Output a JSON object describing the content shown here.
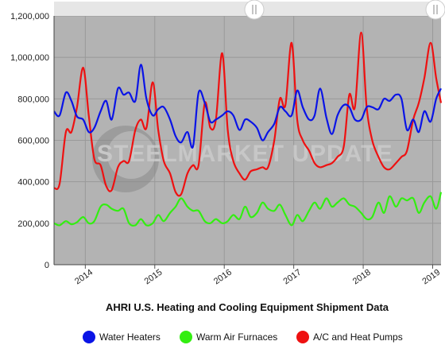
{
  "chart_data": {
    "type": "line",
    "title": "AHRI U.S. Heating and Cooling Equipment Shipment Data",
    "xlabel": "",
    "ylabel": "",
    "ylim": [
      0,
      1200000
    ],
    "yticks": [
      "0",
      "200,000",
      "400,000",
      "600,000",
      "800,000",
      "1,000,000",
      "1,200,000"
    ],
    "yticks_values": [
      0,
      200000,
      400000,
      600000,
      800000,
      1000000,
      1200000
    ],
    "x_range": [
      2013.55,
      2019.12
    ],
    "xticks": [
      {
        "label": "2014",
        "pos": 2014.0
      },
      {
        "label": "2015",
        "pos": 2015.0
      },
      {
        "label": "2016",
        "pos": 2016.0
      },
      {
        "label": "2017",
        "pos": 2017.0
      },
      {
        "label": "2018",
        "pos": 2018.0
      },
      {
        "label": "2019",
        "pos": 2019.0
      }
    ],
    "grid": true,
    "legend_position": "bottom",
    "watermark": "STEELMARKET UPDATE",
    "series": [
      {
        "name": "Water Heaters",
        "color": "#0a14e6",
        "x": [
          2013.55,
          2013.63,
          2013.72,
          2013.8,
          2013.88,
          2013.97,
          2014.05,
          2014.13,
          2014.22,
          2014.3,
          2014.38,
          2014.47,
          2014.55,
          2014.63,
          2014.72,
          2014.8,
          2014.88,
          2014.97,
          2015.05,
          2015.13,
          2015.22,
          2015.3,
          2015.38,
          2015.47,
          2015.55,
          2015.63,
          2015.72,
          2015.8,
          2015.88,
          2015.97,
          2016.05,
          2016.13,
          2016.22,
          2016.3,
          2016.38,
          2016.47,
          2016.55,
          2016.63,
          2016.72,
          2016.8,
          2016.88,
          2016.97,
          2017.05,
          2017.13,
          2017.22,
          2017.3,
          2017.38,
          2017.47,
          2017.55,
          2017.63,
          2017.72,
          2017.8,
          2017.88,
          2017.97,
          2018.05,
          2018.13,
          2018.22,
          2018.3,
          2018.38,
          2018.47,
          2018.55,
          2018.63,
          2018.72,
          2018.8,
          2018.88,
          2018.97,
          2019.05,
          2019.12
        ],
        "values": [
          740000,
          720000,
          830000,
          790000,
          715000,
          700000,
          640000,
          660000,
          740000,
          790000,
          700000,
          850000,
          820000,
          830000,
          790000,
          965000,
          800000,
          720000,
          750000,
          760000,
          700000,
          620000,
          590000,
          640000,
          570000,
          830000,
          780000,
          690000,
          700000,
          720000,
          740000,
          720000,
          650000,
          700000,
          690000,
          660000,
          600000,
          640000,
          680000,
          760000,
          740000,
          720000,
          840000,
          760000,
          700000,
          720000,
          850000,
          710000,
          630000,
          720000,
          770000,
          760000,
          700000,
          700000,
          760000,
          760000,
          750000,
          800000,
          790000,
          820000,
          800000,
          650000,
          700000,
          640000,
          740000,
          690000,
          800000,
          850000
        ]
      },
      {
        "name": "Warm Air Furnaces",
        "color": "#33ee11",
        "x": [
          2013.55,
          2013.63,
          2013.72,
          2013.8,
          2013.88,
          2013.97,
          2014.05,
          2014.13,
          2014.22,
          2014.3,
          2014.38,
          2014.47,
          2014.55,
          2014.63,
          2014.72,
          2014.8,
          2014.88,
          2014.97,
          2015.05,
          2015.13,
          2015.22,
          2015.3,
          2015.38,
          2015.47,
          2015.55,
          2015.63,
          2015.72,
          2015.8,
          2015.88,
          2015.97,
          2016.05,
          2016.13,
          2016.22,
          2016.3,
          2016.38,
          2016.47,
          2016.55,
          2016.63,
          2016.72,
          2016.8,
          2016.88,
          2016.97,
          2017.05,
          2017.13,
          2017.22,
          2017.3,
          2017.38,
          2017.47,
          2017.55,
          2017.63,
          2017.72,
          2017.8,
          2017.88,
          2017.97,
          2018.05,
          2018.13,
          2018.22,
          2018.3,
          2018.38,
          2018.47,
          2018.55,
          2018.63,
          2018.72,
          2018.8,
          2018.88,
          2018.97,
          2019.05,
          2019.12
        ],
        "values": [
          200000,
          190000,
          210000,
          195000,
          205000,
          230000,
          200000,
          210000,
          280000,
          290000,
          270000,
          260000,
          270000,
          200000,
          190000,
          220000,
          190000,
          200000,
          240000,
          210000,
          250000,
          280000,
          320000,
          280000,
          260000,
          260000,
          210000,
          200000,
          220000,
          200000,
          210000,
          240000,
          220000,
          280000,
          230000,
          250000,
          300000,
          270000,
          260000,
          290000,
          240000,
          190000,
          240000,
          210000,
          260000,
          300000,
          270000,
          320000,
          280000,
          300000,
          320000,
          290000,
          280000,
          250000,
          220000,
          230000,
          300000,
          250000,
          330000,
          280000,
          320000,
          310000,
          320000,
          250000,
          300000,
          330000,
          270000,
          350000
        ]
      },
      {
        "name": "A/C and Heat Pumps",
        "color": "#ee1111",
        "x": [
          2013.55,
          2013.63,
          2013.72,
          2013.8,
          2013.88,
          2013.97,
          2014.05,
          2014.13,
          2014.22,
          2014.3,
          2014.38,
          2014.47,
          2014.55,
          2014.63,
          2014.72,
          2014.8,
          2014.88,
          2014.97,
          2015.05,
          2015.13,
          2015.22,
          2015.3,
          2015.38,
          2015.47,
          2015.55,
          2015.63,
          2015.72,
          2015.8,
          2015.88,
          2015.97,
          2016.05,
          2016.13,
          2016.22,
          2016.3,
          2016.38,
          2016.47,
          2016.55,
          2016.63,
          2016.72,
          2016.8,
          2016.88,
          2016.97,
          2017.05,
          2017.13,
          2017.22,
          2017.3,
          2017.38,
          2017.47,
          2017.55,
          2017.63,
          2017.72,
          2017.8,
          2017.88,
          2017.97,
          2018.05,
          2018.13,
          2018.22,
          2018.3,
          2018.38,
          2018.47,
          2018.55,
          2018.63,
          2018.72,
          2018.8,
          2018.88,
          2018.97,
          2019.05,
          2019.12
        ],
        "values": [
          370000,
          390000,
          640000,
          640000,
          760000,
          950000,
          720000,
          510000,
          480000,
          380000,
          360000,
          470000,
          500000,
          500000,
          650000,
          700000,
          660000,
          880000,
          650000,
          500000,
          440000,
          350000,
          340000,
          440000,
          480000,
          480000,
          780000,
          660000,
          700000,
          1020000,
          650000,
          500000,
          440000,
          410000,
          450000,
          460000,
          470000,
          470000,
          600000,
          800000,
          770000,
          1070000,
          700000,
          600000,
          550000,
          490000,
          470000,
          480000,
          490000,
          520000,
          570000,
          820000,
          760000,
          1120000,
          760000,
          600000,
          520000,
          470000,
          460000,
          490000,
          520000,
          550000,
          700000,
          780000,
          900000,
          1070000,
          900000,
          780000
        ]
      }
    ]
  }
}
